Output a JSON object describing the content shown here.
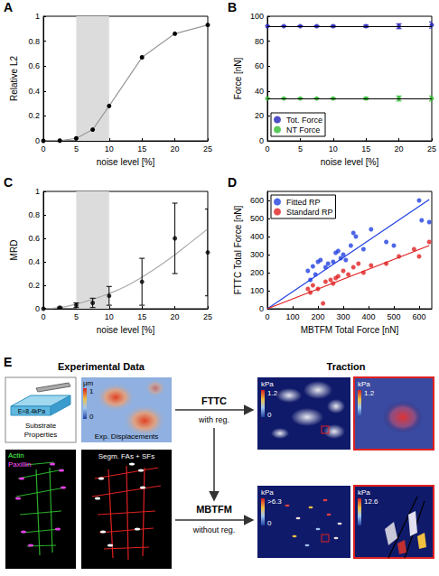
{
  "chart_data": [
    {
      "panel": "A",
      "type": "line",
      "xlabel": "noise level [%]",
      "ylabel": "Relative L2",
      "x": [
        0,
        2.5,
        5,
        7.5,
        10,
        15,
        20,
        25
      ],
      "values": [
        0,
        0.002,
        0.02,
        0.09,
        0.28,
        0.67,
        0.86,
        0.93
      ],
      "color": "#000000",
      "highlight": [
        5,
        10
      ],
      "xlim": [
        0,
        25
      ],
      "xticks": [
        0,
        5,
        10,
        15,
        20,
        25
      ],
      "ylim": [
        0,
        1
      ],
      "yticks": [
        0,
        0.2,
        0.4,
        0.6,
        0.8,
        1
      ],
      "grid": false
    },
    {
      "panel": "B",
      "type": "scatter",
      "xlabel": "noise level [%]",
      "ylabel": "Force [nN]",
      "series": [
        {
          "name": "Tot. Force",
          "color": "#2222b8",
          "x": [
            0,
            2.5,
            5,
            7.5,
            10,
            15,
            20,
            25
          ],
          "values": [
            92,
            92,
            92,
            92,
            92,
            92,
            92,
            93
          ],
          "errors": [
            0.3,
            0.3,
            0.4,
            0.5,
            0.6,
            0.8,
            2,
            2.5
          ],
          "reference": 92
        },
        {
          "name": "NT Force",
          "color": "#33bb33",
          "x": [
            0,
            2.5,
            5,
            7.5,
            10,
            15,
            20,
            25
          ],
          "values": [
            34,
            34,
            34,
            34,
            34,
            34,
            34,
            34
          ],
          "errors": [
            0.2,
            0.2,
            0.3,
            0.3,
            0.5,
            0.8,
            2,
            2
          ],
          "reference": 34
        }
      ],
      "legend": "lower left",
      "xlim": [
        0,
        25
      ],
      "xticks": [
        0,
        5,
        10,
        15,
        20,
        25
      ],
      "ylim": [
        0,
        100
      ],
      "yticks": [
        0,
        20,
        40,
        60,
        80,
        100
      ],
      "grid": false
    },
    {
      "panel": "C",
      "type": "scatter",
      "xlabel": "noise level [%]",
      "ylabel": "MRD",
      "x": [
        0,
        2.5,
        5,
        7.5,
        10,
        15,
        20,
        25
      ],
      "values": [
        0,
        0.01,
        0.03,
        0.05,
        0.11,
        0.23,
        0.6,
        0.48
      ],
      "errors": [
        0,
        0.005,
        0.02,
        0.04,
        0.08,
        0.2,
        0.3,
        0.37
      ],
      "fit": {
        "x": [
          0,
          2.5,
          5,
          7.5,
          10,
          12.5,
          15,
          17.5,
          20,
          22.5,
          25
        ],
        "y": [
          0,
          0.01,
          0.04,
          0.08,
          0.13,
          0.19,
          0.27,
          0.36,
          0.46,
          0.57,
          0.68
        ]
      },
      "color": "#000000",
      "highlight": [
        5,
        10
      ],
      "xlim": [
        0,
        25
      ],
      "xticks": [
        0,
        5,
        10,
        15,
        20,
        25
      ],
      "ylim": [
        0,
        1
      ],
      "yticks": [
        0,
        0.2,
        0.4,
        0.6,
        0.8,
        1
      ],
      "grid": false
    },
    {
      "panel": "D",
      "type": "scatter",
      "xlabel": "MBTFM Total Force [nN]",
      "ylabel": "FTTC Total Force [nN]",
      "series": [
        {
          "name": "Fitted RP",
          "color": "#2040e0",
          "x": [
            160,
            170,
            180,
            190,
            200,
            210,
            230,
            240,
            260,
            270,
            280,
            290,
            300,
            310,
            330,
            340,
            350,
            380,
            410,
            470,
            500,
            600,
            610,
            640
          ],
          "values": [
            210,
            160,
            235,
            190,
            260,
            270,
            230,
            250,
            260,
            310,
            320,
            280,
            300,
            270,
            350,
            420,
            400,
            330,
            440,
            370,
            350,
            600,
            490,
            480
          ],
          "fit": {
            "x": [
              0,
              640
            ],
            "y": [
              0,
              605
            ]
          }
        },
        {
          "name": "Standard RP",
          "color": "#e02020",
          "x": [
            160,
            170,
            180,
            200,
            220,
            230,
            250,
            260,
            270,
            280,
            300,
            320,
            340,
            360,
            380,
            410,
            470,
            520,
            580,
            600,
            640
          ],
          "values": [
            110,
            90,
            130,
            110,
            30,
            150,
            160,
            140,
            170,
            180,
            210,
            190,
            230,
            250,
            200,
            240,
            250,
            290,
            330,
            290,
            370
          ],
          "fit": {
            "x": [
              0,
              640
            ],
            "y": [
              0,
              350
            ]
          }
        }
      ],
      "legend": "upper left",
      "xlim": [
        0,
        650
      ],
      "xticks": [
        0,
        100,
        200,
        300,
        400,
        500,
        600
      ],
      "ylim": [
        0,
        650
      ],
      "yticks": [
        0,
        100,
        200,
        300,
        400,
        500,
        600
      ],
      "grid": false
    }
  ],
  "diagram": {
    "panel": "E",
    "left_title": "Experimental Data",
    "right_title": "Traction",
    "substrate": {
      "title": "Substrate Properties",
      "modulus": "E≈8.4kPa"
    },
    "displacement": {
      "unit": "μm",
      "max": "1",
      "min": "0",
      "label": "Exp. Displacements"
    },
    "stains": [
      "Actin",
      "Paxillin"
    ],
    "segmentation": "Segm. FAs + SFs",
    "fttc": {
      "method": "FTTC",
      "note": "with reg."
    },
    "mbtfm": {
      "method": "MBTFM",
      "note": "without reg."
    },
    "traction_maps": [
      {
        "unit": "kPa",
        "max": "1.2",
        "min": "0"
      },
      {
        "unit": "kPa",
        "max": "1.2"
      },
      {
        "unit": "kPa",
        "max": ">6.3",
        "min": "0"
      },
      {
        "unit": "kPa",
        "max": "12.6"
      }
    ]
  }
}
